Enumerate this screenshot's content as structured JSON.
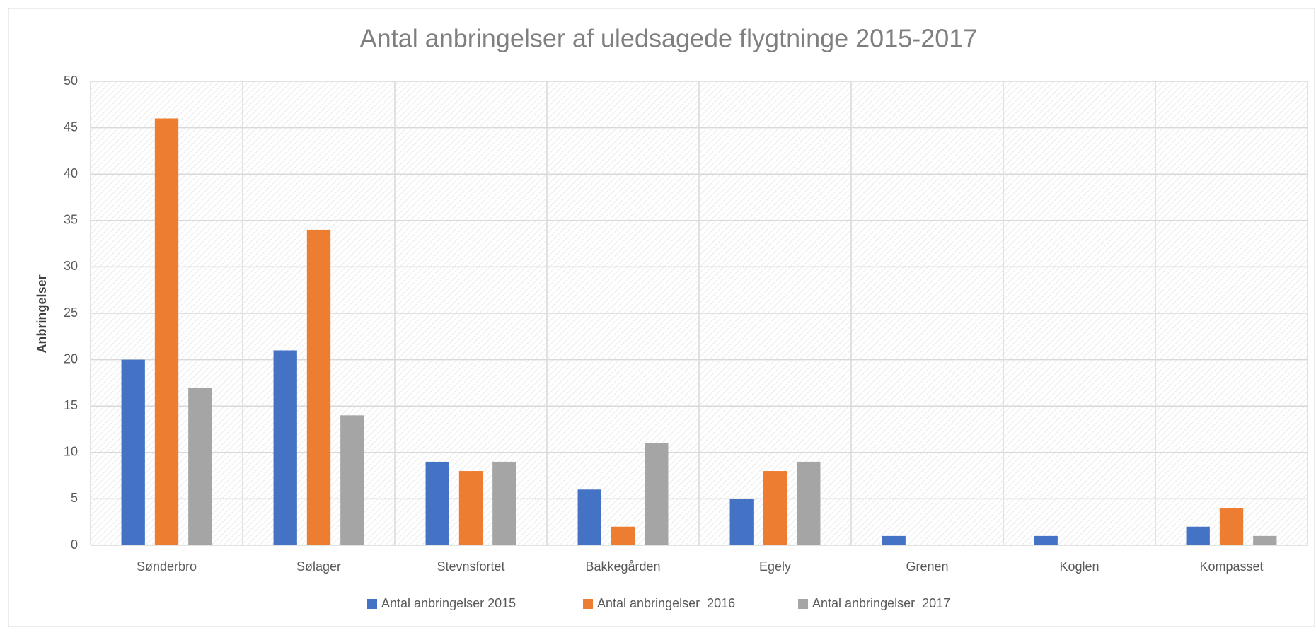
{
  "chart_data": {
    "type": "bar",
    "title": "Antal anbringelser af uledsagede flygtninge 2015-2017",
    "y_label": "Anbringelser",
    "categories": [
      "Sønderbro",
      "Sølager",
      "Stevnsfortet",
      "Bakkegården",
      "Egely",
      "Grenen",
      "Koglen",
      "Kompasset"
    ],
    "series": [
      {
        "name": "Antal anbringelser 2015",
        "color": "#4472c4",
        "values": [
          20,
          21,
          9,
          6,
          5,
          1,
          1,
          2
        ]
      },
      {
        "name": "Antal anbringelser  2016",
        "color": "#ed7d31",
        "values": [
          46,
          34,
          8,
          2,
          8,
          0,
          0,
          4
        ]
      },
      {
        "name": "Antal anbringelser  2017",
        "color": "#a5a5a5",
        "values": [
          17,
          14,
          9,
          11,
          9,
          0,
          0,
          1
        ]
      }
    ],
    "ylim": [
      0,
      50
    ],
    "yticks": [
      0,
      5,
      10,
      15,
      20,
      25,
      30,
      35,
      40,
      45,
      50
    ],
    "grid": true,
    "legend": "bottom"
  }
}
